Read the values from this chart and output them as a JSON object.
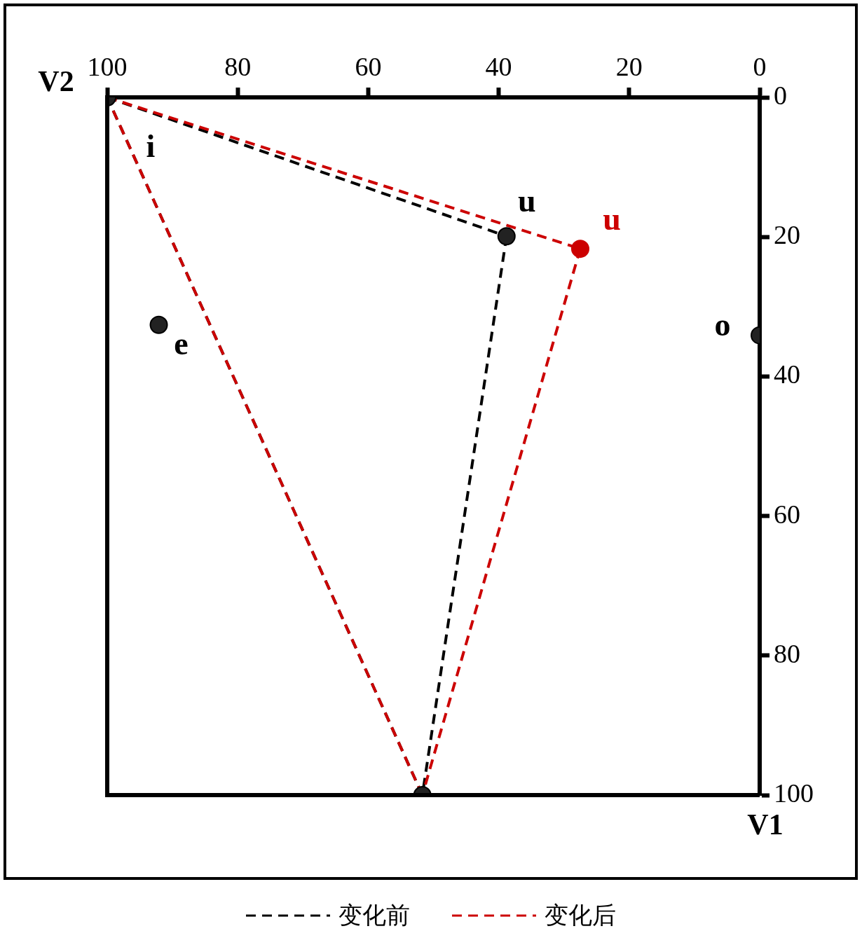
{
  "chart_data": {
    "type": "line",
    "xlabel": "V2",
    "ylabel": "V1",
    "xlim": [
      100,
      0
    ],
    "xticks": [
      100,
      80,
      60,
      40,
      20,
      0
    ],
    "ylim": [
      100,
      0
    ],
    "yticks": [
      0,
      20,
      40,
      60,
      80,
      100
    ],
    "grid": false,
    "legend": "bottom",
    "series": [
      {
        "name": "变化前",
        "color": "#000000",
        "line_style": "dashed",
        "marker": "none",
        "x": [
          100,
          38.8
        ],
        "values": [
          0,
          19.9
        ]
      },
      {
        "color": "#000000",
        "line_style": "dashed",
        "marker": "none",
        "x": [
          38.8,
          51.7
        ],
        "values": [
          19.9,
          100
        ]
      },
      {
        "color": "#000000",
        "line_style": "dashed",
        "marker": "none",
        "x": [
          51.7,
          100
        ],
        "values": [
          100,
          0
        ]
      },
      {
        "name": "变化后",
        "color": "#cc0000",
        "line_style": "dashed",
        "marker": "none",
        "x": [
          100,
          27.5
        ],
        "values": [
          0,
          21.7
        ]
      },
      {
        "color": "#cc0000",
        "line_style": "dashed",
        "marker": "none",
        "x": [
          27.5,
          51.7
        ],
        "values": [
          21.7,
          100
        ]
      },
      {
        "color": "#cc0000",
        "line_style": "dashed",
        "marker": "none",
        "x": [
          51.7,
          100
        ],
        "values": [
          100,
          0
        ]
      },
      {
        "type": "scatter",
        "color": "#222222",
        "marker": "circle",
        "x": [
          100,
          92.1,
          38.8,
          0,
          51.7
        ],
        "values": [
          0,
          32.6,
          19.9,
          34.1,
          100
        ]
      },
      {
        "type": "scatter",
        "color": "#cc0000",
        "marker": "circle",
        "x": [
          27.5
        ],
        "values": [
          21.7
        ]
      }
    ],
    "annotations": [
      {
        "text": "i",
        "x": 100,
        "y": 0
      },
      {
        "text": "u",
        "x": 38.8,
        "y": 19.9
      },
      {
        "text": "u",
        "x": 27.5,
        "y": 21.7
      },
      {
        "text": "e",
        "x": 92.1,
        "y": 32.6
      },
      {
        "text": "o",
        "x": 0,
        "y": 34.1
      }
    ]
  }
}
